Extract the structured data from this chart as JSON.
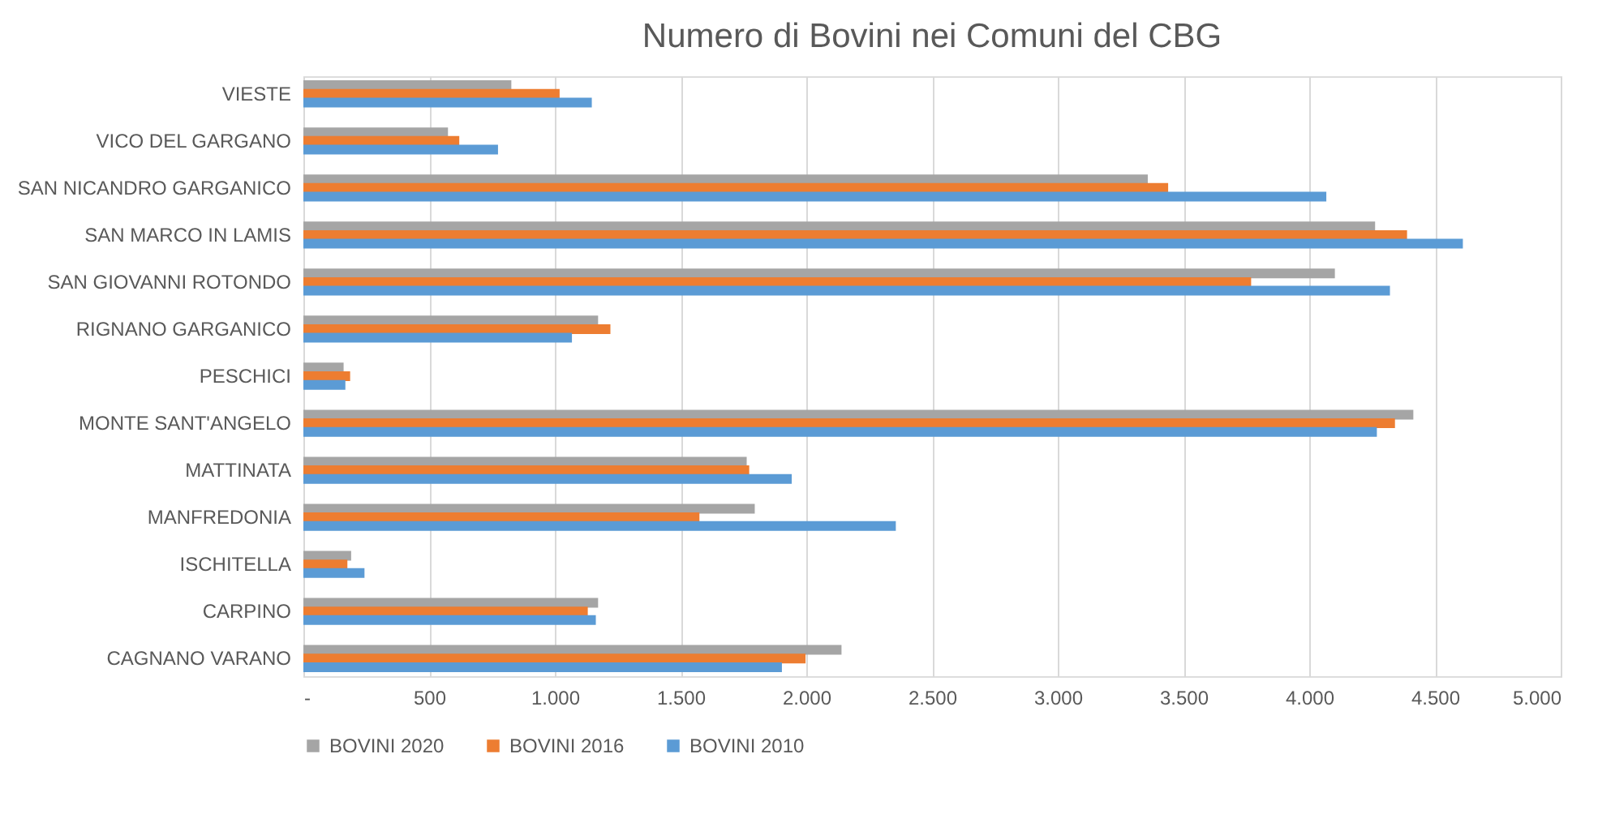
{
  "chart_data": {
    "type": "bar",
    "orientation": "horizontal",
    "title": "Numero di Bovini nei Comuni del CBG",
    "categories": [
      "VIESTE",
      "VICO DEL GARGANO",
      "SAN NICANDRO GARGANICO",
      "SAN MARCO IN LAMIS",
      "SAN GIOVANNI ROTONDO",
      "RIGNANO GARGANICO",
      "PESCHICI",
      "MONTE SANT'ANGELO",
      "MATTINATA",
      "MANFREDONIA",
      "ISCHITELLA",
      "CARPINO",
      "CAGNANO VARANO"
    ],
    "series": [
      {
        "name": "BOVINI 2020",
        "color": "#a5a5a5",
        "values": [
          827,
          575,
          3358,
          4262,
          4102,
          1172,
          160,
          4414,
          1763,
          1795,
          190,
          1172,
          2140
        ]
      },
      {
        "name": "BOVINI 2016",
        "color": "#ed7d31",
        "values": [
          1019,
          620,
          3439,
          4389,
          3769,
          1221,
          186,
          4341,
          1773,
          1575,
          175,
          1131,
          1997
        ]
      },
      {
        "name": "BOVINI 2010",
        "color": "#5b9bd5",
        "values": [
          1147,
          774,
          4068,
          4611,
          4321,
          1068,
          167,
          4269,
          1942,
          2356,
          243,
          1163,
          1903
        ]
      }
    ],
    "xlim": [
      0,
      5000
    ],
    "xticks": [
      {
        "value": 0,
        "label": "-"
      },
      500,
      {
        "value": 1000,
        "label": "1.000"
      },
      {
        "value": 1500,
        "label": "1.500"
      },
      {
        "value": 2000,
        "label": "2.000"
      },
      {
        "value": 2500,
        "label": "2.500"
      },
      {
        "value": 3000,
        "label": "3.000"
      },
      {
        "value": 3500,
        "label": "3.500"
      },
      {
        "value": 4000,
        "label": "4.000"
      },
      {
        "value": 4500,
        "label": "4.500"
      },
      {
        "value": 5000,
        "label": "5.000"
      }
    ],
    "grid": "x",
    "legend": "bottom"
  }
}
